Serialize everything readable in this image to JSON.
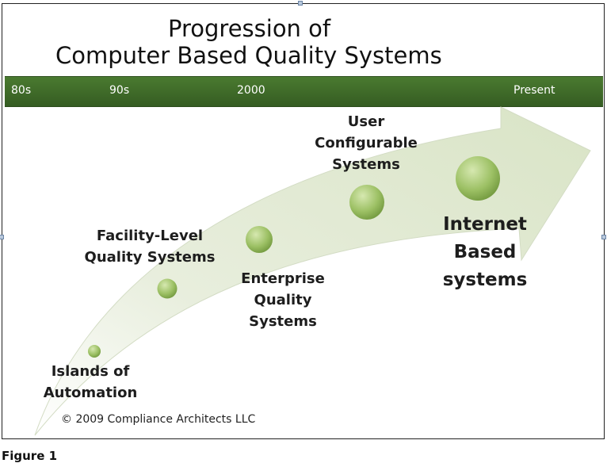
{
  "title": {
    "line1": "Progression of",
    "line2": "Computer Based Quality Systems"
  },
  "timeline": {
    "color": "#3f6b29",
    "eras": [
      "80s",
      "90s",
      "2000",
      "Present"
    ]
  },
  "stages": [
    {
      "lines": [
        "Islands of",
        "Automation"
      ]
    },
    {
      "lines": [
        "Facility-Level",
        "Quality Systems"
      ]
    },
    {
      "lines": [
        "Enterprise",
        "Quality",
        "Systems"
      ]
    },
    {
      "lines": [
        "User",
        "Configurable",
        "Systems"
      ]
    },
    {
      "lines": [
        "Internet",
        "Based",
        "systems"
      ]
    }
  ],
  "copyright": "© 2009 Compliance Architects LLC",
  "caption": "Figure 1",
  "colors": {
    "arrow_fill": "#e2ead4",
    "node_light": "#cfe3a8",
    "node_dark": "#7fa548"
  }
}
